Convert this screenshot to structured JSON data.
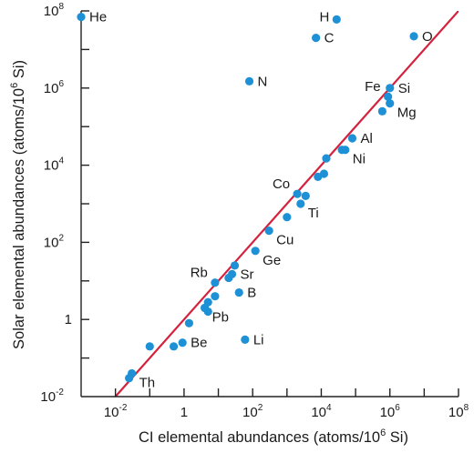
{
  "chart_data": {
    "type": "scatter",
    "xlabel": "CI elemental abundances (atoms/10",
    "xlabel_sup": "6",
    "xlabel_end": " Si)",
    "ylabel": "Solar elemental abundances (atoms/10",
    "ylabel_sup": "6",
    "ylabel_end": " Si)",
    "scale": "log10",
    "xlim": [
      0.001,
      100000000
    ],
    "ylim": [
      0.01,
      100000000
    ],
    "x_ticks": [
      {
        "exp": -2,
        "base": "10",
        "sup": "-2"
      },
      {
        "exp": 0,
        "base": "1",
        "sup": ""
      },
      {
        "exp": 2,
        "base": "10",
        "sup": "2"
      },
      {
        "exp": 4,
        "base": "10",
        "sup": "4"
      },
      {
        "exp": 6,
        "base": "10",
        "sup": "6"
      },
      {
        "exp": 8,
        "base": "10",
        "sup": "8"
      }
    ],
    "y_ticks": [
      {
        "exp": -2,
        "base": "10",
        "sup": "-2"
      },
      {
        "exp": 0,
        "base": "1",
        "sup": ""
      },
      {
        "exp": 2,
        "base": "10",
        "sup": "2"
      },
      {
        "exp": 4,
        "base": "10",
        "sup": "4"
      },
      {
        "exp": 6,
        "base": "10",
        "sup": "6"
      },
      {
        "exp": 8,
        "base": "10",
        "sup": "8"
      }
    ],
    "reference_line": "y = x",
    "labeled_points": [
      {
        "label": "He",
        "x": 0.001,
        "y": 70000000,
        "pos": "right"
      },
      {
        "label": "H",
        "x": 28000,
        "y": 60000000,
        "pos": "left"
      },
      {
        "label": "C",
        "x": 7000,
        "y": 20000000,
        "pos": "right"
      },
      {
        "label": "O",
        "x": 5000000,
        "y": 22000000,
        "pos": "right"
      },
      {
        "label": "N",
        "x": 80,
        "y": 1500000,
        "pos": "right"
      },
      {
        "label": "Fe",
        "x": 880000,
        "y": 600000,
        "pos": "upleft"
      },
      {
        "label": "Si",
        "x": 1000000,
        "y": 1000000,
        "pos": "right"
      },
      {
        "label": "Mg",
        "x": 1000000,
        "y": 400000,
        "pos": "rightdown"
      },
      {
        "label": "Al",
        "x": 80000,
        "y": 50000,
        "pos": "right"
      },
      {
        "label": "Ni",
        "x": 50000,
        "y": 25000,
        "pos": "rightdown"
      },
      {
        "label": "Co",
        "x": 2000,
        "y": 1800,
        "pos": "upleft"
      },
      {
        "label": "Ti",
        "x": 2500,
        "y": 1000,
        "pos": "rightdown"
      },
      {
        "label": "Cu",
        "x": 300,
        "y": 200,
        "pos": "rightdown"
      },
      {
        "label": "Ge",
        "x": 120,
        "y": 60,
        "pos": "rightdown"
      },
      {
        "label": "Rb",
        "x": 8,
        "y": 9,
        "pos": "upleft"
      },
      {
        "label": "Sr",
        "x": 25,
        "y": 15,
        "pos": "right"
      },
      {
        "label": "B",
        "x": 40,
        "y": 5,
        "pos": "right"
      },
      {
        "label": "Pb",
        "x": 4,
        "y": 2,
        "pos": "rightdown"
      },
      {
        "label": "Be",
        "x": 0.9,
        "y": 0.25,
        "pos": "right"
      },
      {
        "label": "Li",
        "x": 60,
        "y": 0.3,
        "pos": "right"
      },
      {
        "label": "Th",
        "x": 0.03,
        "y": 0.04,
        "pos": "rightdown"
      }
    ],
    "unlabeled_points": [
      {
        "x": 0.025,
        "y": 0.03
      },
      {
        "x": 0.1,
        "y": 0.2
      },
      {
        "x": 0.5,
        "y": 0.2
      },
      {
        "x": 1.4,
        "y": 0.8
      },
      {
        "x": 5,
        "y": 2.8
      },
      {
        "x": 5,
        "y": 1.6
      },
      {
        "x": 8,
        "y": 4
      },
      {
        "x": 20,
        "y": 12
      },
      {
        "x": 30,
        "y": 25
      },
      {
        "x": 1000,
        "y": 450
      },
      {
        "x": 3500,
        "y": 1600
      },
      {
        "x": 8000,
        "y": 5000
      },
      {
        "x": 12000,
        "y": 6000
      },
      {
        "x": 14000,
        "y": 15000
      },
      {
        "x": 40000,
        "y": 25000
      },
      {
        "x": 600000,
        "y": 250000
      }
    ]
  }
}
